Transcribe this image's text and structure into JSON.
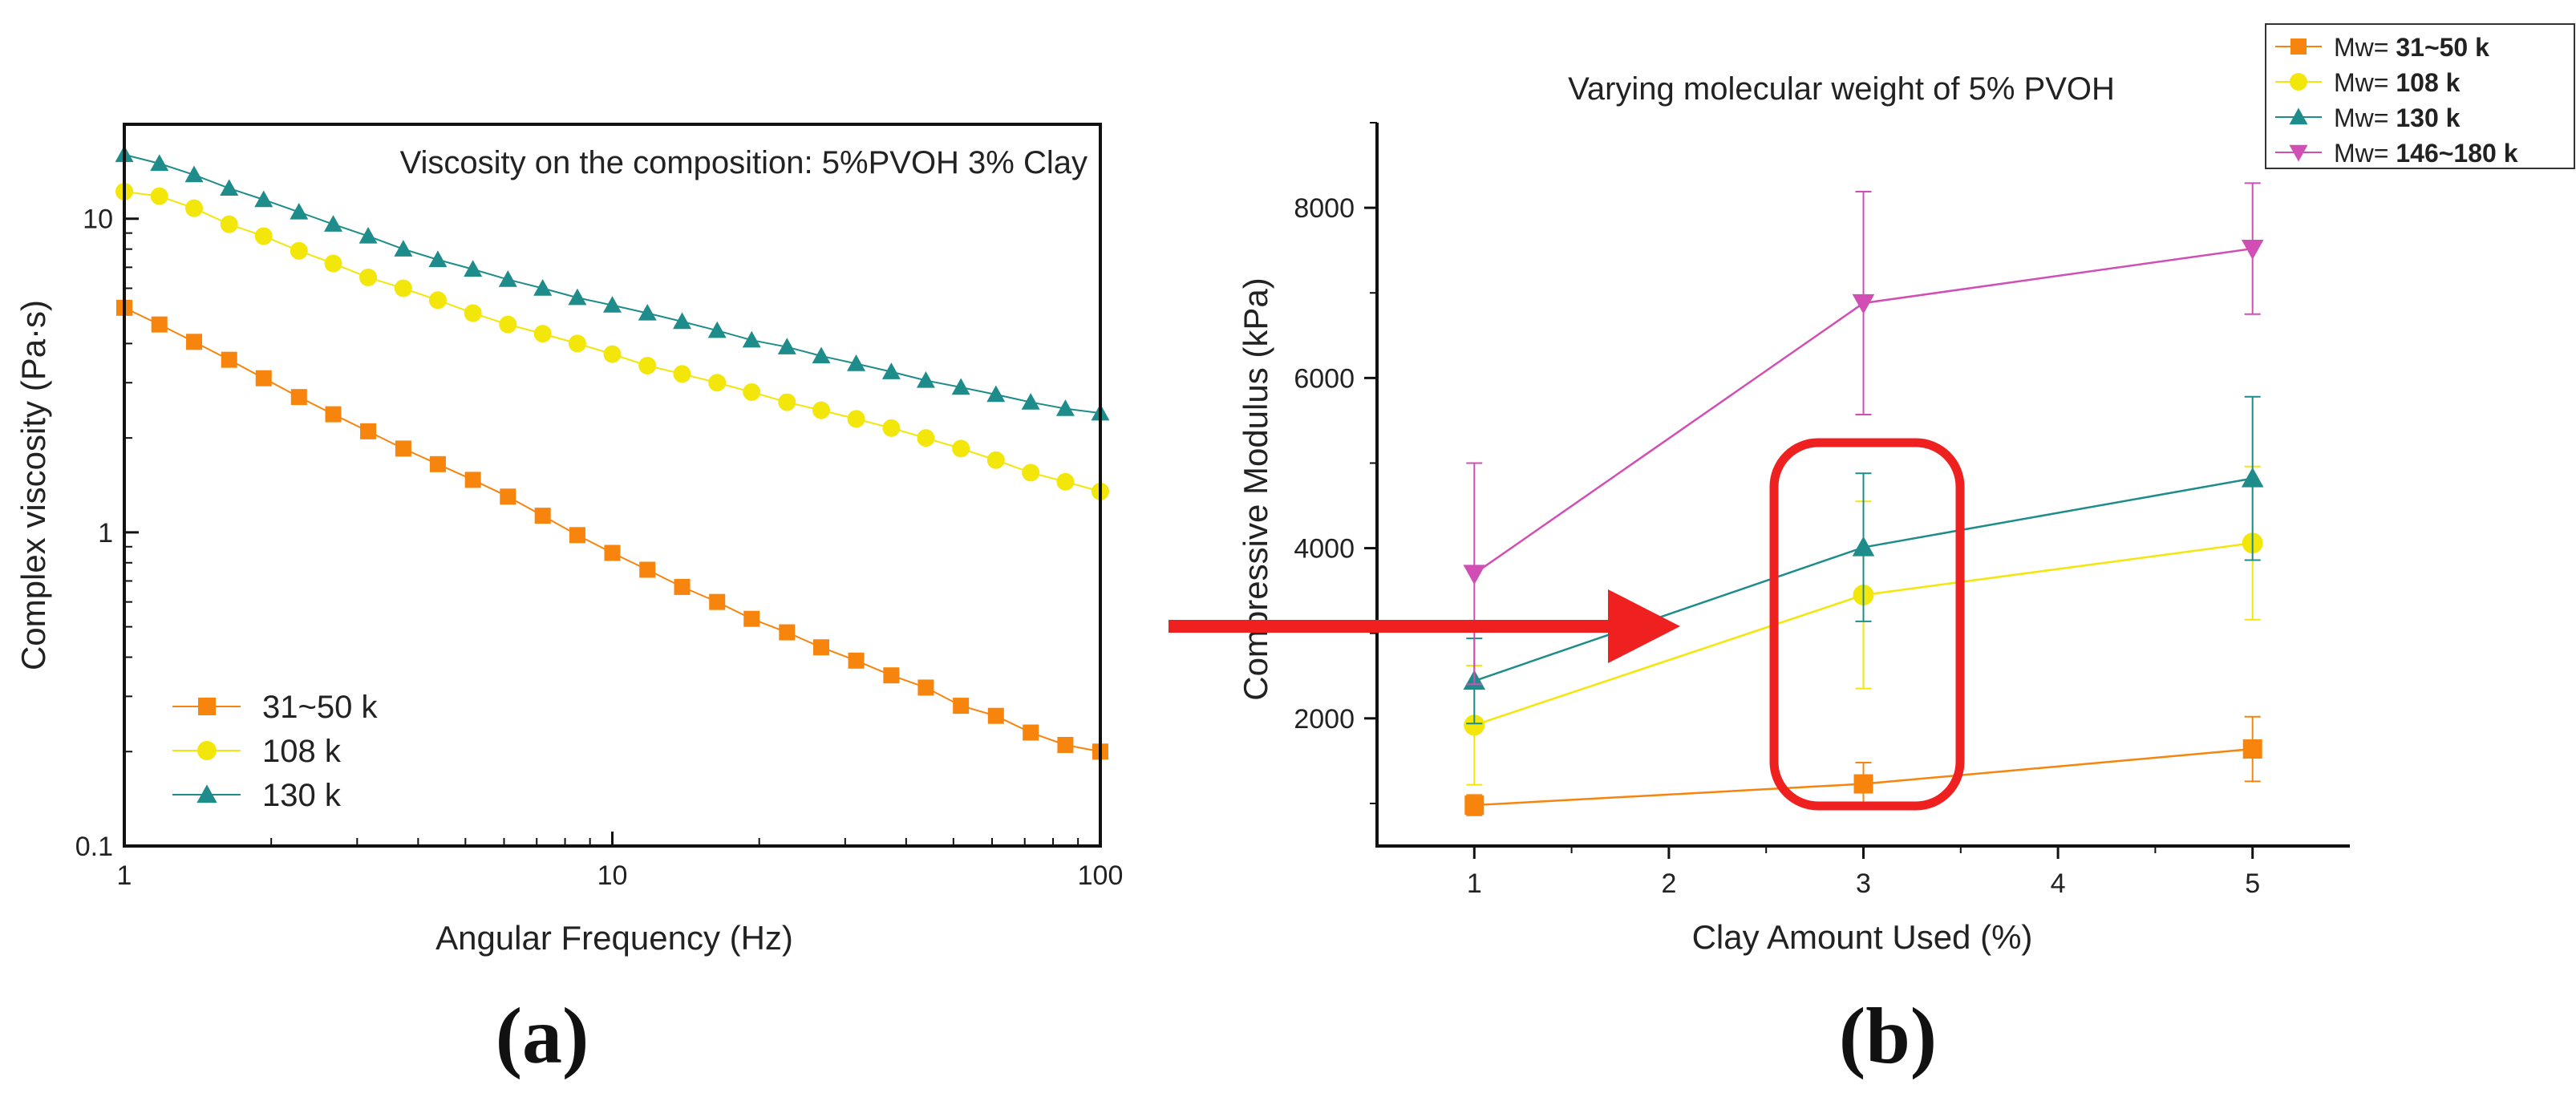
{
  "figure": {
    "label_a": "(a)",
    "label_b": "(b)"
  },
  "chart_data": [
    {
      "type": "line",
      "panel": "(a)",
      "title": "Viscosity on the composition: 5%PVOH 3% Clay",
      "xlabel": "Angular Frequency (Hz)",
      "ylabel": "Complex viscosity (Pa·s)",
      "xscale": "log",
      "yscale": "log",
      "xlim": [
        1,
        100
      ],
      "ylim": [
        0.1,
        20
      ],
      "xticks": [
        1,
        10,
        100
      ],
      "xtick_labels": [
        "1",
        "10",
        "100"
      ],
      "yticks": [
        0.1,
        1,
        10
      ],
      "ytick_labels": [
        "0.1",
        "1",
        "10"
      ],
      "legend_position": "bottom-left",
      "x": [
        1.0,
        1.18,
        1.39,
        1.64,
        1.93,
        2.28,
        2.68,
        3.16,
        3.73,
        4.39,
        5.18,
        6.11,
        7.2,
        8.48,
        10.0,
        11.8,
        13.9,
        16.4,
        19.3,
        22.8,
        26.8,
        31.6,
        37.3,
        43.9,
        51.8,
        61.1,
        72.0,
        84.8,
        100.0
      ],
      "series": [
        {
          "name": "31~50 k",
          "color": "#f7840c",
          "marker": "square",
          "values": [
            5.2,
            4.6,
            4.05,
            3.55,
            3.1,
            2.7,
            2.38,
            2.1,
            1.85,
            1.65,
            1.47,
            1.3,
            1.13,
            0.98,
            0.86,
            0.76,
            0.67,
            0.6,
            0.53,
            0.48,
            0.43,
            0.39,
            0.35,
            0.32,
            0.28,
            0.26,
            0.23,
            0.21,
            0.2
          ]
        },
        {
          "name": "108 k",
          "color": "#f2e60a",
          "marker": "circle",
          "values": [
            12.2,
            11.8,
            10.8,
            9.6,
            8.8,
            7.9,
            7.2,
            6.5,
            6.0,
            5.5,
            5.0,
            4.6,
            4.3,
            4.0,
            3.7,
            3.4,
            3.2,
            3.0,
            2.8,
            2.6,
            2.45,
            2.3,
            2.15,
            2.0,
            1.85,
            1.7,
            1.55,
            1.45,
            1.35
          ]
        },
        {
          "name": "130 k",
          "color": "#1f8c8c",
          "marker": "triangle-up",
          "values": [
            16.0,
            15.0,
            13.8,
            12.5,
            11.5,
            10.5,
            9.6,
            8.8,
            8.0,
            7.4,
            6.9,
            6.4,
            6.0,
            5.6,
            5.3,
            5.0,
            4.7,
            4.4,
            4.1,
            3.9,
            3.65,
            3.45,
            3.25,
            3.05,
            2.9,
            2.75,
            2.6,
            2.48,
            2.4
          ]
        }
      ]
    },
    {
      "type": "line",
      "panel": "(b)",
      "title": "Varying molecular weight of 5% PVOH",
      "xlabel": "Clay Amount Used (%)",
      "ylabel": "Compressive Modulus (kPa)",
      "xlim": [
        0.5,
        5.5
      ],
      "ylim": [
        500,
        9000
      ],
      "xticks": [
        1,
        2,
        3,
        4,
        5
      ],
      "xtick_labels": [
        "1",
        "2",
        "3",
        "4",
        "5"
      ],
      "yticks": [
        2000,
        4000,
        6000,
        8000
      ],
      "ytick_labels": [
        "2000",
        "4000",
        "6000",
        "8000"
      ],
      "legend_position": "top-right",
      "legend_prefix": "Mw=",
      "x": [
        1,
        3,
        5
      ],
      "series": [
        {
          "name": "31~50 k",
          "color": "#f7840c",
          "marker": "square",
          "values": [
            980,
            1230,
            1640
          ],
          "errors": [
            120,
            250,
            380
          ]
        },
        {
          "name": "108 k",
          "color": "#f2e60a",
          "marker": "circle",
          "values": [
            1920,
            3450,
            4060
          ],
          "errors": [
            700,
            1100,
            900
          ]
        },
        {
          "name": "130 k",
          "color": "#1f8c8c",
          "marker": "triangle-up",
          "values": [
            2440,
            4010,
            4820
          ],
          "errors": [
            500,
            870,
            960
          ]
        },
        {
          "name": "146~180 k",
          "color": "#d14fb4",
          "marker": "triangle-down",
          "values": [
            3700,
            6880,
            7520
          ],
          "errors": [
            1300,
            1310,
            770
          ]
        }
      ],
      "annotations": {
        "highlight_color": "#ef2020",
        "arrow_color": "#ef2020"
      }
    }
  ]
}
